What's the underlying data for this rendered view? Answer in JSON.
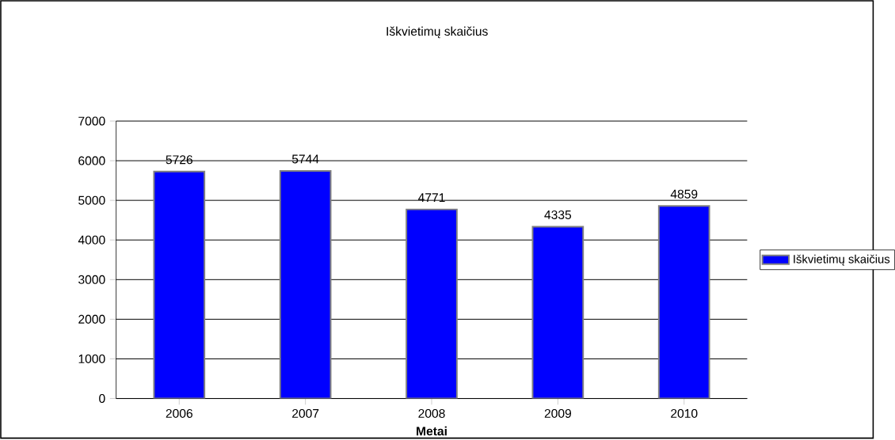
{
  "chart_data": {
    "type": "bar",
    "title": "Iškvietimų skaičius",
    "xlabel": "Metai",
    "categories": [
      "2006",
      "2007",
      "2008",
      "2009",
      "2010"
    ],
    "series": [
      {
        "name": "Iškvietimų skaičius",
        "color": "#0000ff",
        "values": [
          5726,
          5744,
          4771,
          4335,
          4859
        ]
      }
    ],
    "ylim": [
      0,
      7000
    ],
    "yticks": [
      0,
      1000,
      2000,
      3000,
      4000,
      5000,
      6000,
      7000
    ],
    "grid": "y",
    "legend": "right",
    "data_labels": true
  }
}
